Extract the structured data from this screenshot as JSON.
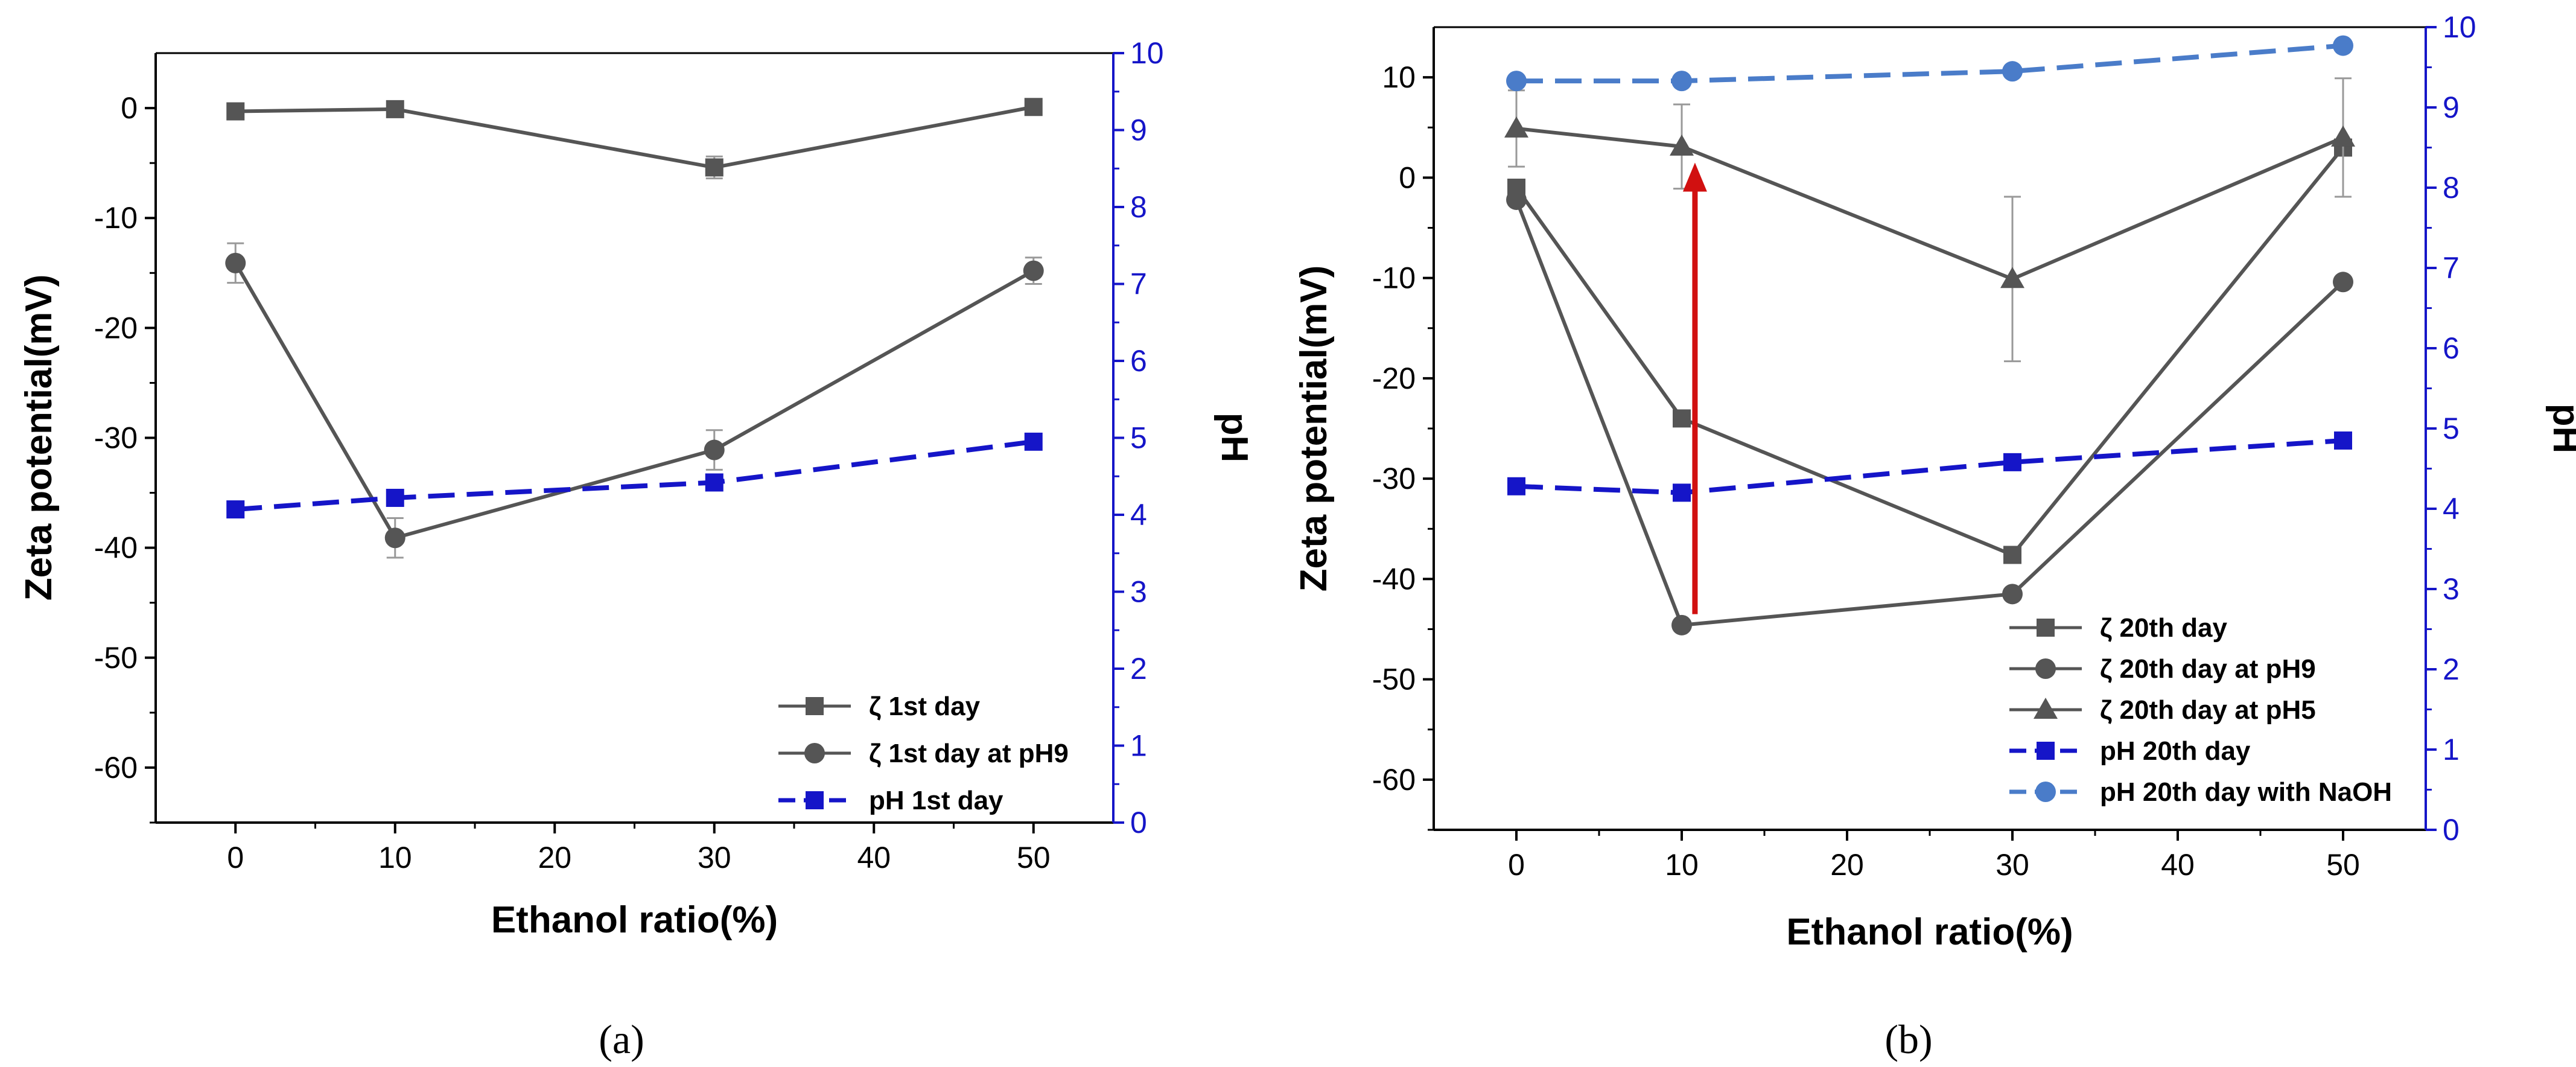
{
  "chart_data": [
    {
      "type": "line",
      "panel_caption": "(a)",
      "xlabel": "Ethanol ratio(%)",
      "ylabel": "Zeta potential(mV)",
      "y2label": "pH",
      "xlim": [
        -5,
        55
      ],
      "ylim": [
        -65,
        5
      ],
      "y2lim": [
        0,
        10
      ],
      "xticks": [
        0,
        10,
        20,
        30,
        40,
        50
      ],
      "yticks": [
        0,
        -10,
        -20,
        -30,
        -40,
        -50,
        -60
      ],
      "y2ticks": [
        0,
        1,
        2,
        3,
        4,
        5,
        6,
        7,
        8,
        9,
        10
      ],
      "legend_position": "bottom-right",
      "series": [
        {
          "name": "ζ 1st day",
          "axis": "left",
          "marker": "square",
          "line": "solid",
          "color": "#555555",
          "x": [
            0,
            10,
            30,
            50
          ],
          "values": [
            -0.3,
            -0.1,
            -5.4,
            0.1
          ],
          "errors": [
            0.4,
            0.4,
            1.0,
            0.4
          ]
        },
        {
          "name": "ζ 1st day at pH9",
          "axis": "left",
          "marker": "circle",
          "line": "solid",
          "color": "#555555",
          "x": [
            0,
            10,
            30,
            50
          ],
          "values": [
            -14.1,
            -39.1,
            -31.1,
            -14.8
          ],
          "errors": [
            1.8,
            1.8,
            1.8,
            1.2
          ]
        },
        {
          "name": "pH 1st day",
          "axis": "right",
          "marker": "square",
          "line": "dashed",
          "color": "#1515c8",
          "x": [
            0,
            10,
            30,
            50
          ],
          "values": [
            4.07,
            4.22,
            4.42,
            4.95
          ]
        }
      ]
    },
    {
      "type": "line",
      "panel_caption": "(b)",
      "xlabel": "Ethanol ratio(%)",
      "ylabel": "Zeta potential(mV)",
      "y2label": "pH",
      "xlim": [
        -5,
        55
      ],
      "ylim": [
        -65,
        15
      ],
      "y2lim": [
        0,
        10
      ],
      "xticks": [
        0,
        10,
        20,
        30,
        40,
        50
      ],
      "yticks": [
        10,
        0,
        -10,
        -20,
        -30,
        -40,
        -50,
        -60
      ],
      "y2ticks": [
        0,
        1,
        2,
        3,
        4,
        5,
        6,
        7,
        8,
        9,
        10
      ],
      "legend_position": "bottom-right",
      "annotations": [
        {
          "type": "arrow",
          "color": "#d11010",
          "x": 10.8,
          "from_y": -43.5,
          "to_y": 1.5
        }
      ],
      "series": [
        {
          "name": "ζ 20th day",
          "axis": "left",
          "marker": "square",
          "line": "solid",
          "color": "#555555",
          "x": [
            0,
            10,
            30,
            50
          ],
          "values": [
            -1.0,
            -24.0,
            -37.6,
            3.0
          ]
        },
        {
          "name": "ζ 20th day at pH9",
          "axis": "left",
          "marker": "circle",
          "line": "solid",
          "color": "#555555",
          "x": [
            0,
            10,
            30,
            50
          ],
          "values": [
            -2.2,
            -44.6,
            -41.5,
            -10.4
          ]
        },
        {
          "name": "ζ 20th day at pH5",
          "axis": "left",
          "marker": "triangle",
          "line": "solid",
          "color": "#555555",
          "x": [
            0,
            10,
            30,
            50
          ],
          "values": [
            4.9,
            3.1,
            -10.1,
            4.0
          ],
          "errors": [
            3.8,
            4.2,
            8.2,
            5.9
          ]
        },
        {
          "name": "pH 20th day",
          "axis": "right",
          "marker": "square",
          "line": "dashed",
          "color": "#1515c8",
          "x": [
            0,
            10,
            30,
            50
          ],
          "values": [
            4.28,
            4.2,
            4.58,
            4.85
          ]
        },
        {
          "name": "pH 20th day with NaOH",
          "axis": "right",
          "marker": "circle",
          "line": "dashed",
          "color": "#4a7cc9",
          "x": [
            0,
            10,
            30,
            50
          ],
          "values": [
            9.33,
            9.33,
            9.45,
            9.77
          ]
        }
      ]
    }
  ]
}
